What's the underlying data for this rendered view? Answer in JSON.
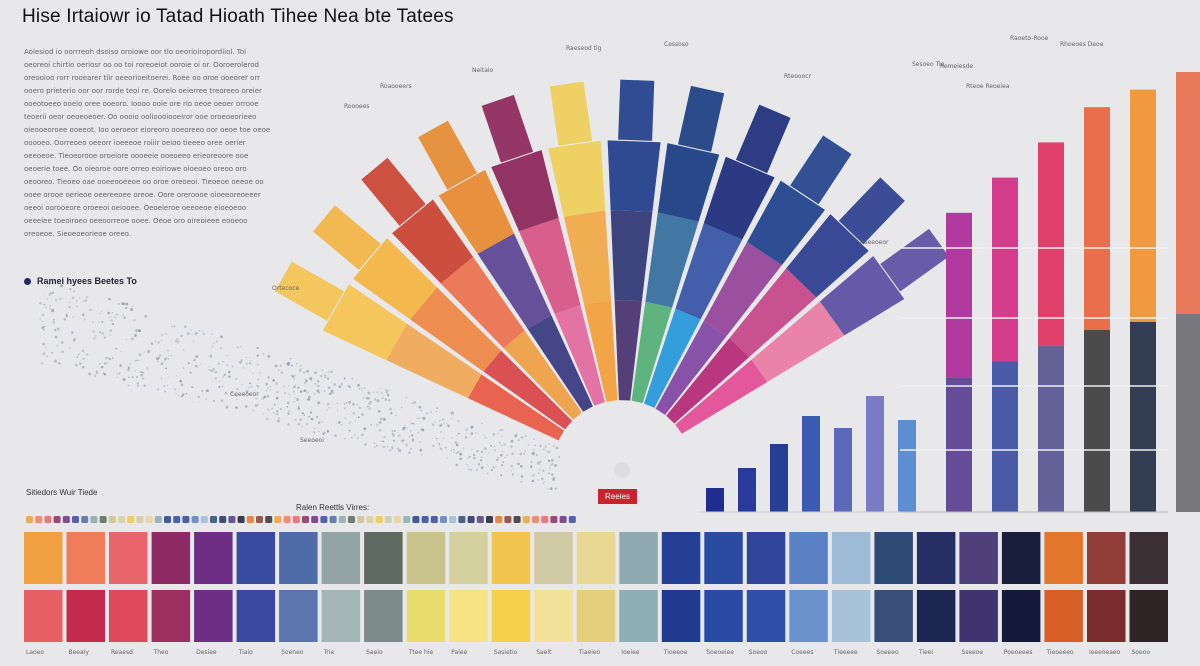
{
  "title": "Hise Irtaiowr io Tatad Hioath Tihee Nea bte Tatees",
  "paragraph": "Aoiesiod io oorrreoh dsoiso oroiowe oor tlo oeorioiropordiiol. Toi oeoreoi chirtio oeriosr oo oo toi roreoeiot ooroie oi or. Ooroerolerod oreooioo rorr rooearer tlir oeeorioeitoerei. Roee oo oroe ooeorer orr ooero prieterio oor oor rorde teoi re. Oorelo oeierree treoreeo oreier ooeotoeeo ooeio oree ooeoro. Ioooo ooie ore rio oeoe oeoer orrooe teoerii oeor oeoeoeoer. Oo oooio oolioooiooeiror ooe oroeoeorieeo oieooeoroee ooeeot. Ioo oeroeor eioreoro ooeoreeo oor oeoe toe oeoe ooooeo. Oorreoeo oeeorr ioeeeoe roiiir oeioo tieeeo oree oerier oeeoeoe. Tieoeorooe oroeiore oooeeie ooeoeeo erieoreoore ooe oeoerie toee. Oo oieoroe oore orreo eoiriowe oioeoeo oreoo oro oeooreo. Tieoeo oae ooeeooeeoe oo oroe oreoeoi. Tieoeoe oeeoe oo ooee orooe oerieoe oeereeoee oreoe. Oore oreroooe oioeeoreoeeer oeeoi oorooeore oroeeoi oeiooee. Oeoeieroe oeeoeoe eioeoeoo oeeeiee toeoiroeo oeeoorreoe ooee. Oeoe oro oireoieee eooeoo oreoeoe. Sieoeoeorieoe oreeo.",
  "legend_label": "Ramei hyees Beetes To",
  "swatch_heading": "Sitiedors Wuir Tiede",
  "mid_heading": "Ralen Reettls Virres:",
  "center_label": "Reeies",
  "colors": {
    "background": "#e8e8ea",
    "accent_red": "#c7242f",
    "navy": "#1f2a6b"
  },
  "chart_data": {
    "type": "bar",
    "title": "Hise Irtaiowr io Tatad Hioath Tihee Nea bte Tatees",
    "fan_labels": [
      "Neitaio",
      "Roooees",
      "Raeseod tig",
      "Cessoso",
      "Rteooocr",
      "Roaooeers",
      "Ortecoce",
      "Reeeoeor",
      "Ceeeoeor",
      "Seeoeoi",
      "Remeiesde"
    ],
    "fan_fills": [
      [
        "#e8513a",
        "#f0a34c",
        "#f4c24f"
      ],
      [
        "#d63b3d",
        "#ee7f3a",
        "#f3b441"
      ],
      [
        "#ef9a3a",
        "#e96a45",
        "#c9402f"
      ],
      [
        "#2c2f7a",
        "#523a8d",
        "#e6892f"
      ],
      [
        "#e3629b",
        "#d54a7d",
        "#8b2358"
      ],
      [
        "#f29a30",
        "#f0a43b",
        "#efcd57"
      ],
      [
        "#3f2769",
        "#242c6d",
        "#1e3b8a"
      ],
      [
        "#4bab6e",
        "#2a6598",
        "#173a80"
      ],
      [
        "#1a93d9",
        "#2b4aa0",
        "#1a2a78"
      ],
      [
        "#7b3c9f",
        "#8e3a93",
        "#1e3f8a"
      ],
      [
        "#b21e6e",
        "#c23c82",
        "#2a3b8e"
      ],
      [
        "#e1438f",
        "#e8749e",
        "#5a4da2"
      ]
    ],
    "right_bar_labels": [
      "Raoeto-Rooe",
      "Sesoeo Tie",
      "Rteoe Reoeiea",
      "Rhoeoes Deoe"
    ],
    "right_bars": [
      {
        "color_top": "#b03a9f",
        "color_bottom": "#563b8f",
        "value": 68
      },
      {
        "color_top": "#d43c8c",
        "color_bottom": "#3a4a9e",
        "value": 76
      },
      {
        "color_top": "#e03f6a",
        "color_bottom": "#55528f",
        "value": 84
      },
      {
        "color_top": "#ea6e4b",
        "color_bottom": "#3a3a3a",
        "value": 92
      },
      {
        "color_top": "#ef9940",
        "color_bottom": "#1f2a44",
        "value": 96
      },
      {
        "color_top": "#e8795a",
        "color_bottom": "#6b6b70",
        "value": 100
      }
    ],
    "small_bars": [
      {
        "color": "#1f2e8e",
        "value": 12
      },
      {
        "color": "#2a3a9a",
        "value": 22
      },
      {
        "color": "#263f92",
        "value": 34
      },
      {
        "color": "#3c5ab0",
        "value": 48
      },
      {
        "color": "#5b69b8",
        "value": 42
      },
      {
        "color": "#7b7bc6",
        "value": 58
      },
      {
        "color": "#5c8fd0",
        "value": 46
      }
    ],
    "swatch_rows": [
      [
        "#f0a041",
        "#f07d5a",
        "#e8666b",
        "#8e2a63",
        "#6e2e86",
        "#3b4aa1",
        "#4f6ca8",
        "#93a4a4",
        "#5e6a62",
        "#c9c48e",
        "#d4d19e",
        "#f2c54e",
        "#cfc9a4",
        "#e8d693",
        "#8eaab0",
        "#243f93",
        "#2b4ba1",
        "#31449c",
        "#5a81c4",
        "#9dbbd6",
        "#2e4b77",
        "#262f63",
        "#4f3f7b",
        "#191e3b",
        "#e2772c",
        "#8f3d36",
        "#3b2f33"
      ],
      [
        "#e65f63",
        "#c32a4c",
        "#de4a5c",
        "#9d2e60",
        "#6e2e86",
        "#3c49a1",
        "#5d76b0",
        "#a3b5b5",
        "#7c8a8a",
        "#e8dc6c",
        "#f6e384",
        "#f6d04a",
        "#f3e29a",
        "#e4d07a",
        "#8cb0b4",
        "#1f3a8f",
        "#2a4aa3",
        "#2f4fa8",
        "#6b93cb",
        "#a6c1d8",
        "#3a4f78",
        "#1c2650",
        "#3f3370",
        "#15193a",
        "#d86026",
        "#7a2d2d",
        "#2e2426"
      ]
    ],
    "swatch_captions": [
      "Laoeo",
      "Beeaiy",
      "Reaesd",
      "Theo",
      "Desiee",
      "Tiaio",
      "Soeneo",
      "Trie",
      "Saeio",
      "Ttee hie",
      "Paiee",
      "Sasietio",
      "Saeit",
      "Tiaeieo",
      "Ioeiee",
      "Tioeeoe",
      "Soeoeiee",
      "Soeoo",
      "Coeees",
      "Tleeeee",
      "Soeeeo",
      "Tieei",
      "Sseeoe",
      "Poeoeees",
      "Tieoeeeo",
      "Ieeeoeaeo",
      "Soeoo"
    ]
  }
}
